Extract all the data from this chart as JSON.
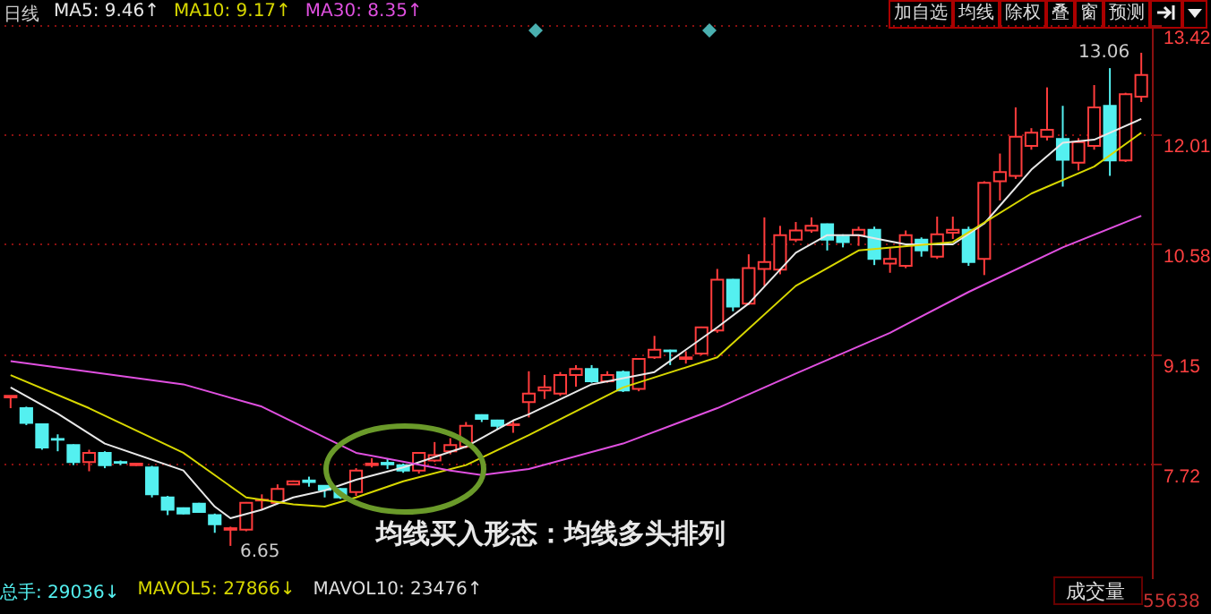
{
  "chart_data": {
    "type": "candlestick",
    "title": "日线",
    "categories": [
      null,
      null,
      null,
      null,
      null,
      null,
      null,
      null,
      null,
      null,
      null,
      null,
      null,
      null,
      null,
      null,
      null,
      null,
      null,
      null,
      null,
      null,
      null,
      null,
      null,
      null,
      null,
      null,
      null,
      null,
      null,
      null,
      null,
      null,
      null,
      null,
      null,
      null,
      null,
      null,
      null,
      null,
      null,
      null,
      null,
      null,
      null,
      null,
      null,
      null,
      null,
      null,
      null,
      null,
      null,
      null,
      null,
      null,
      null,
      null,
      null,
      null,
      null,
      null,
      null,
      null,
      null,
      null,
      null,
      null,
      null,
      null,
      null
    ],
    "ohlc": [
      [
        8.58,
        8.6,
        8.44,
        8.6
      ],
      [
        8.44,
        8.46,
        8.22,
        8.25
      ],
      [
        8.23,
        8.24,
        7.9,
        7.93
      ],
      [
        8.04,
        8.1,
        7.88,
        8.03
      ],
      [
        7.96,
        7.97,
        7.7,
        7.74
      ],
      [
        7.74,
        7.9,
        7.62,
        7.86
      ],
      [
        7.86,
        7.88,
        7.66,
        7.7
      ],
      [
        7.74,
        7.76,
        7.7,
        7.73
      ],
      [
        7.7,
        7.73,
        7.69,
        7.72
      ],
      [
        7.67,
        7.69,
        7.28,
        7.32
      ],
      [
        7.28,
        7.3,
        7.05,
        7.12
      ],
      [
        7.14,
        7.15,
        7.06,
        7.07
      ],
      [
        7.2,
        7.21,
        7.08,
        7.09
      ],
      [
        7.05,
        7.07,
        6.82,
        6.93
      ],
      [
        6.86,
        6.9,
        6.65,
        6.88
      ],
      [
        6.86,
        7.22,
        6.84,
        7.21
      ],
      [
        7.24,
        7.32,
        7.12,
        7.25
      ],
      [
        7.21,
        7.45,
        7.2,
        7.39
      ],
      [
        7.45,
        7.5,
        7.44,
        7.49
      ],
      [
        7.5,
        7.55,
        7.42,
        7.48
      ],
      [
        7.43,
        7.44,
        7.28,
        7.38
      ],
      [
        7.39,
        7.4,
        7.26,
        7.28
      ],
      [
        7.35,
        7.66,
        7.3,
        7.63
      ],
      [
        7.7,
        7.79,
        7.67,
        7.72
      ],
      [
        7.73,
        7.78,
        7.65,
        7.71
      ],
      [
        7.7,
        7.72,
        7.6,
        7.63
      ],
      [
        7.63,
        7.87,
        7.59,
        7.86
      ],
      [
        7.76,
        8.0,
        7.74,
        7.83
      ],
      [
        7.88,
        8.05,
        7.84,
        7.96
      ],
      [
        7.94,
        8.26,
        7.92,
        8.21
      ],
      [
        8.35,
        8.36,
        8.26,
        8.3
      ],
      [
        8.28,
        8.29,
        8.16,
        8.21
      ],
      [
        8.22,
        8.28,
        8.12,
        8.23
      ],
      [
        8.52,
        8.92,
        8.32,
        8.63
      ],
      [
        8.67,
        8.87,
        8.56,
        8.71
      ],
      [
        8.63,
        8.91,
        8.6,
        8.87
      ],
      [
        8.87,
        9.0,
        8.72,
        8.95
      ],
      [
        8.95,
        9.0,
        8.77,
        8.79
      ],
      [
        8.79,
        8.92,
        8.77,
        8.87
      ],
      [
        8.91,
        8.93,
        8.65,
        8.67
      ],
      [
        8.69,
        9.09,
        8.66,
        9.08
      ],
      [
        9.1,
        9.38,
        9.08,
        9.2
      ],
      [
        9.19,
        9.2,
        9.0,
        9.18
      ],
      [
        9.08,
        9.18,
        9.02,
        9.1
      ],
      [
        9.15,
        9.5,
        9.13,
        9.49
      ],
      [
        9.45,
        10.25,
        9.42,
        10.11
      ],
      [
        10.11,
        10.12,
        9.7,
        9.76
      ],
      [
        9.8,
        10.44,
        9.78,
        10.26
      ],
      [
        10.25,
        10.92,
        10.03,
        10.34
      ],
      [
        10.24,
        10.81,
        10.18,
        10.69
      ],
      [
        10.63,
        10.86,
        10.6,
        10.75
      ],
      [
        10.75,
        10.92,
        10.72,
        10.81
      ],
      [
        10.83,
        10.84,
        10.49,
        10.63
      ],
      [
        10.67,
        10.7,
        10.53,
        10.6
      ],
      [
        10.69,
        10.8,
        10.55,
        10.76
      ],
      [
        10.76,
        10.8,
        10.3,
        10.38
      ],
      [
        10.32,
        10.52,
        10.2,
        10.38
      ],
      [
        10.29,
        10.75,
        10.26,
        10.69
      ],
      [
        10.63,
        10.66,
        10.41,
        10.49
      ],
      [
        10.41,
        10.93,
        10.38,
        10.7
      ],
      [
        10.72,
        10.93,
        10.64,
        10.76
      ],
      [
        10.76,
        10.8,
        10.29,
        10.34
      ],
      [
        10.38,
        11.39,
        10.17,
        11.37
      ],
      [
        11.39,
        11.75,
        11.14,
        11.51
      ],
      [
        11.46,
        12.35,
        11.42,
        11.97
      ],
      [
        11.85,
        12.08,
        11.8,
        12.02
      ],
      [
        11.97,
        12.61,
        11.92,
        12.06
      ],
      [
        11.94,
        12.37,
        11.32,
        11.67
      ],
      [
        11.63,
        11.95,
        11.53,
        11.9
      ],
      [
        11.85,
        12.64,
        11.8,
        12.35
      ],
      [
        12.37,
        12.86,
        11.46,
        11.66
      ],
      [
        11.66,
        12.54,
        11.64,
        12.52
      ],
      [
        12.49,
        13.06,
        12.42,
        12.77
      ]
    ],
    "series": [
      {
        "type": "line",
        "name": "MA5: 9.46↑",
        "color": "#e8e8e8",
        "values": [
          8.71,
          null,
          null,
          8.37,
          null,
          null,
          7.98,
          null,
          null,
          null,
          null,
          7.63,
          null,
          7.16,
          7.01,
          null,
          7.12,
          null,
          7.28,
          null,
          7.37,
          null,
          7.51,
          null,
          null,
          7.67,
          null,
          null,
          null,
          7.94,
          null,
          null,
          8.28,
          8.36,
          null,
          null,
          null,
          8.75,
          null,
          null,
          null,
          8.91,
          null,
          null,
          null,
          9.49,
          null,
          9.8,
          null,
          null,
          10.46,
          null,
          10.69,
          null,
          10.69,
          null,
          null,
          10.57,
          null,
          null,
          10.57,
          null,
          10.84,
          null,
          null,
          11.54,
          null,
          11.89,
          null,
          11.93,
          null,
          null,
          12.2
        ]
      },
      {
        "type": "line",
        "name": "MA10: 9.17↑",
        "color": "#d8d800",
        "values": [
          8.87,
          null,
          null,
          null,
          null,
          8.44,
          null,
          null,
          null,
          null,
          null,
          7.86,
          null,
          null,
          null,
          7.28,
          null,
          null,
          7.19,
          null,
          7.16,
          null,
          7.28,
          null,
          null,
          7.49,
          null,
          null,
          null,
          7.7,
          null,
          null,
          null,
          8.09,
          null,
          null,
          null,
          null,
          null,
          8.71,
          null,
          null,
          null,
          null,
          null,
          9.1,
          null,
          null,
          null,
          null,
          10.03,
          null,
          null,
          null,
          10.49,
          null,
          null,
          null,
          null,
          null,
          10.6,
          null,
          null,
          null,
          null,
          11.23,
          null,
          null,
          null,
          11.58,
          null,
          null,
          12.02
        ]
      },
      {
        "type": "line",
        "name": "MA30: 8.35↑",
        "color": "#e050e0",
        "values": [
          9.05,
          null,
          null,
          null,
          null,
          null,
          null,
          null,
          null,
          null,
          null,
          8.75,
          null,
          null,
          null,
          null,
          8.46,
          null,
          null,
          null,
          null,
          null,
          7.86,
          null,
          null,
          null,
          null,
          null,
          7.63,
          null,
          7.57,
          null,
          null,
          7.65,
          null,
          null,
          null,
          null,
          null,
          7.98,
          null,
          null,
          null,
          null,
          null,
          8.44,
          null,
          null,
          null,
          null,
          8.89,
          null,
          null,
          null,
          null,
          null,
          9.42,
          null,
          null,
          null,
          null,
          9.95,
          null,
          null,
          null,
          null,
          null,
          10.53,
          null,
          null,
          null,
          null,
          10.94
        ]
      }
    ],
    "ylim": [
      6.23,
      13.42
    ],
    "yticks": [
      7.72,
      9.15,
      10.58,
      12.01,
      13.42
    ],
    "grid": "y",
    "legend": "top left",
    "tick_labels": "y",
    "line_style": "solid",
    "marker": "none",
    "annotations": [
      "均线买入形态：均线多头排列",
      "加自选",
      "均线",
      "除权",
      "叠",
      "窗",
      "预测",
      "总手: 29036↓",
      "MAVOL5: 27866↓",
      "MAVOL10: 23476↑",
      "成交量",
      "55638",
      "13.06",
      "6.65"
    ]
  }
}
